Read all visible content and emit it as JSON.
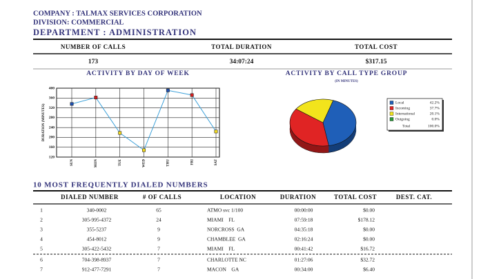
{
  "header": {
    "company": "COMPANY : TALMAX SERVICES CORPORATION",
    "division": "DIVISION: COMMERCIAL",
    "department": "DEPARTMENT : ADMINISTRATION"
  },
  "summary": {
    "columns": [
      "NUMBER OF CALLS",
      "TOTAL DURATION",
      "TOTAL COST"
    ],
    "values": [
      "173",
      "34:07:24",
      "$317.15"
    ]
  },
  "chart_data": [
    {
      "type": "line",
      "title": "ACTIVITY BY DAY OF WEEK",
      "y_label": "DURATION (MINUTES)",
      "categories": [
        "SUN",
        "MON",
        "TUE",
        "WED",
        "THU",
        "FRI",
        "SAT"
      ],
      "values": [
        336,
        362,
        218,
        148,
        391,
        372,
        224
      ],
      "color": "#3a9fd8",
      "point_colors": [
        "#1f4fb0",
        "#d42020",
        "#f0d820",
        "#f0d820",
        "#1f4fb0",
        "#d42020",
        "#f0d820"
      ],
      "ylim": [
        120,
        400
      ],
      "yticks": [
        120,
        160,
        200,
        240,
        280,
        320,
        360,
        400
      ],
      "grid": true
    },
    {
      "type": "pie",
      "title": "ACTIVITY BY CALL TYPE GROUP",
      "subtitle": "(IN MINUTES)",
      "categories": [
        "Local",
        "Incoming",
        "International",
        "Outgoing"
      ],
      "values": [
        42.2,
        37.7,
        20.1,
        0.0
      ],
      "value_labels": [
        "42.2%",
        "37.7%",
        "20.1%",
        "0.0%"
      ],
      "colors": [
        "#1f5fb8",
        "#e02424",
        "#f2e41c",
        "#2a9a3a"
      ],
      "total_label": "Total",
      "total_value_label": "100.0%"
    }
  ],
  "top_numbers": {
    "title": "10 MOST FREQUENTLY DIALED NUMBERS",
    "columns": [
      "DIALED NUMBER",
      "# OF CALLS",
      "LOCATION",
      "DURATION",
      "TOTAL COST",
      "DEST. CAT."
    ],
    "rows": [
      [
        "1",
        "340-0002",
        "65",
        "ATMO svc 1/100",
        "00:00:00",
        "$0.00"
      ],
      [
        "2",
        "305-995-4372",
        "24",
        "MIAMI    FL",
        "07:59:18",
        "$178.12"
      ],
      [
        "3",
        "355-5237",
        "9",
        "NORCROSS  GA",
        "04:35:18",
        "$0.00"
      ],
      [
        "4",
        "454-8012",
        "9",
        "CHAMBLEE  GA",
        "02:16:24",
        "$0.00"
      ],
      [
        "5",
        "305-422-5432",
        "7",
        "MIAMI    FL",
        "00:41:42",
        "$16.72"
      ],
      [
        "6",
        "704-398-8937",
        "7",
        "CHARLOTTE NC",
        "01:27:06",
        "$32.72"
      ],
      [
        "7",
        "912-477-7291",
        "7",
        "MACON    GA",
        "00:34:00",
        "$6.40"
      ]
    ]
  }
}
